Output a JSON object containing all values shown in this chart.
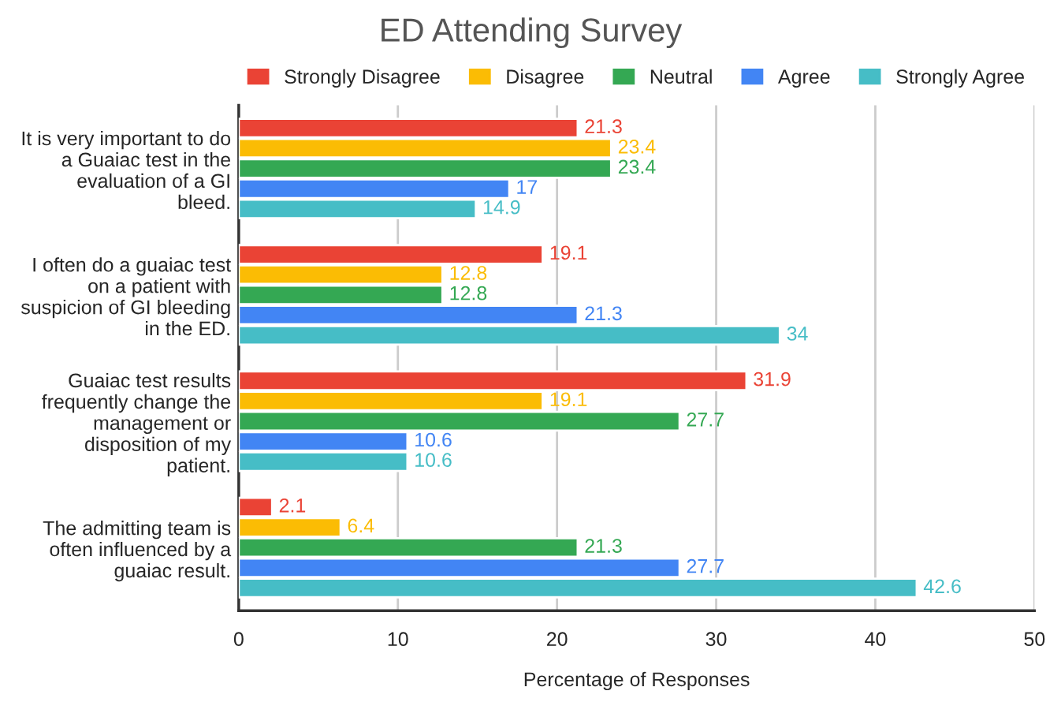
{
  "chart_data": {
    "type": "bar",
    "orientation": "horizontal",
    "title": "ED Attending Survey",
    "xlabel": "Percentage of Responses",
    "categories": [
      "It is very important to do\na Guaiac test in the\nevaluation of a GI\nbleed.",
      "I often do a guaiac test\non a patient with\nsuspicion of GI bleeding\nin the ED.",
      "Guaiac test results\nfrequently change the\nmanagement or\ndisposition of my\npatient.",
      "The admitting team is\noften influenced by a\nguaiac result."
    ],
    "series": [
      {
        "name": "Strongly Disagree",
        "color": "#ea4335",
        "values": [
          21.3,
          19.1,
          31.9,
          2.1
        ]
      },
      {
        "name": "Disagree",
        "color": "#fbbc04",
        "values": [
          23.4,
          12.8,
          19.1,
          6.4
        ]
      },
      {
        "name": "Neutral",
        "color": "#34a853",
        "values": [
          23.4,
          12.8,
          27.7,
          21.3
        ]
      },
      {
        "name": "Agree",
        "color": "#4285f4",
        "values": [
          17,
          21.3,
          10.6,
          27.7
        ]
      },
      {
        "name": "Strongly Agree",
        "color": "#46bdc6",
        "values": [
          14.9,
          34,
          10.6,
          42.6
        ]
      }
    ],
    "xlim": [
      0,
      50
    ],
    "xticks": [
      0,
      10,
      20,
      30,
      40,
      50
    ],
    "grid": "x",
    "legend": "top",
    "data_labels": true
  }
}
